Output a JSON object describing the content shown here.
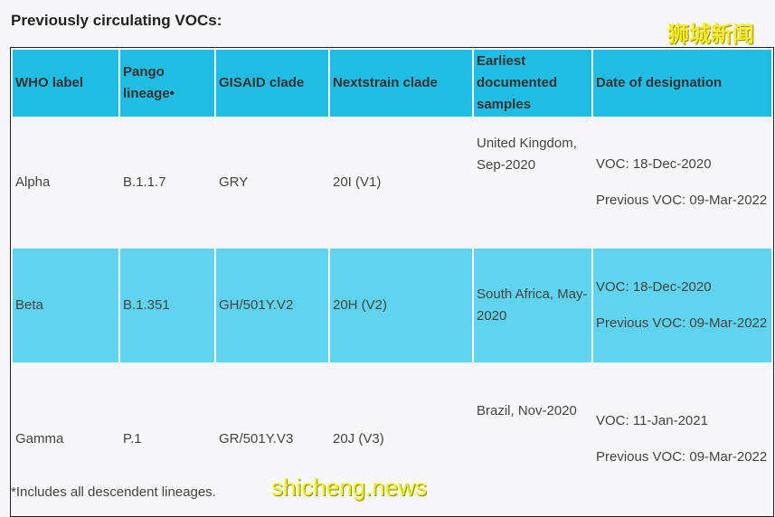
{
  "title": "Previously circulating VOCs:",
  "watermarks": [
    "狮城新闻",
    "shicheng.news"
  ],
  "headers": [
    "WHO label",
    "Pango lineage•",
    "GISAID clade",
    "Nextstrain clade",
    "Earliest documented samples",
    "Date of designation"
  ],
  "rows": [
    {
      "who": "Alpha",
      "pango": "B.1.1.7",
      "gisaid": "GRY",
      "nextstrain": "20I (V1)",
      "earliest": "United Kingdom, Sep-2020",
      "voc": "VOC: 18-Dec-2020",
      "prev": "Previous VOC: 09-Mar-2022"
    },
    {
      "who": "Beta",
      "pango": "B.1.351",
      "gisaid": "GH/501Y.V2",
      "nextstrain": "20H (V2)",
      "earliest": "South Africa, May-2020",
      "voc": "VOC: 18-Dec-2020",
      "prev": "Previous VOC: 09-Mar-2022"
    },
    {
      "who": "Gamma",
      "pango": "P.1",
      "gisaid": "GR/501Y.V3",
      "nextstrain": "20J (V3)",
      "earliest": "Brazil, Nov-2020",
      "voc": "VOC: 11-Jan-2021",
      "prev": "Previous VOC: 09-Mar-2022"
    }
  ],
  "footnote": "*Includes all descendent lineages.",
  "colors": {
    "header": "#1fbce4",
    "highlight_row": "#60d4ef"
  }
}
